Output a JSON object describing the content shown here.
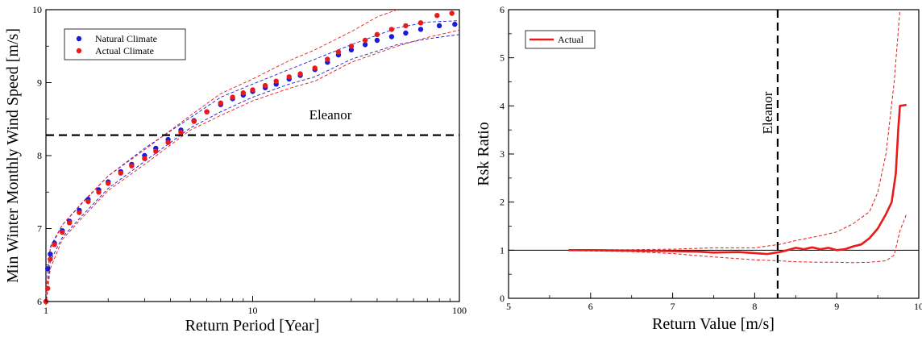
{
  "chart_data": [
    {
      "type": "scatter",
      "xscale": "log",
      "xlabel": "Return Period [Year]",
      "ylabel": "Min Winter Monthly Wind Speed [m/s]",
      "xlim": [
        1,
        100
      ],
      "ylim": [
        6,
        10
      ],
      "xticks": [
        {
          "value": 1,
          "label": "1"
        },
        {
          "value": 10,
          "label": "10"
        },
        {
          "value": 100,
          "label": "100"
        }
      ],
      "yticks": [
        {
          "value": 6,
          "label": "6"
        },
        {
          "value": 7,
          "label": "7"
        },
        {
          "value": 8,
          "label": "8"
        },
        {
          "value": 9,
          "label": "9"
        },
        {
          "value": 10,
          "label": "10"
        }
      ],
      "legend_position": "top-left",
      "threshold": {
        "value": 8.28,
        "label": "Eleanor",
        "orientation": "horizontal",
        "style": "dashed"
      },
      "series": [
        {
          "name": "Natural Climate",
          "color": "#1a1adc",
          "points": [
            [
              1.0,
              6.0
            ],
            [
              1.02,
              6.45
            ],
            [
              1.05,
              6.65
            ],
            [
              1.1,
              6.8
            ],
            [
              1.2,
              6.97
            ],
            [
              1.3,
              7.1
            ],
            [
              1.45,
              7.25
            ],
            [
              1.6,
              7.4
            ],
            [
              1.8,
              7.53
            ],
            [
              2.0,
              7.64
            ],
            [
              2.3,
              7.78
            ],
            [
              2.6,
              7.88
            ],
            [
              3.0,
              8.0
            ],
            [
              3.4,
              8.1
            ],
            [
              3.9,
              8.22
            ],
            [
              4.5,
              8.35
            ],
            [
              5.2,
              8.48
            ],
            [
              6.0,
              8.6
            ],
            [
              7.0,
              8.7
            ],
            [
              8.0,
              8.78
            ],
            [
              9.0,
              8.83
            ],
            [
              10.0,
              8.88
            ],
            [
              11.5,
              8.93
            ],
            [
              13.0,
              8.98
            ],
            [
              15.0,
              9.05
            ],
            [
              17.0,
              9.1
            ],
            [
              20.0,
              9.18
            ],
            [
              23.0,
              9.28
            ],
            [
              26.0,
              9.38
            ],
            [
              30.0,
              9.45
            ],
            [
              35.0,
              9.52
            ],
            [
              40.0,
              9.58
            ],
            [
              47.0,
              9.63
            ],
            [
              55.0,
              9.68
            ],
            [
              65.0,
              9.73
            ],
            [
              80.0,
              9.78
            ],
            [
              95.0,
              9.8
            ]
          ],
          "ci_upper": [
            [
              1.0,
              6.1
            ],
            [
              1.05,
              6.75
            ],
            [
              1.2,
              7.05
            ],
            [
              1.5,
              7.35
            ],
            [
              2.0,
              7.72
            ],
            [
              3.0,
              8.1
            ],
            [
              5.0,
              8.52
            ],
            [
              7.0,
              8.8
            ],
            [
              10.0,
              8.98
            ],
            [
              15.0,
              9.18
            ],
            [
              20.0,
              9.32
            ],
            [
              30.0,
              9.52
            ],
            [
              50.0,
              9.75
            ],
            [
              70.0,
              9.83
            ],
            [
              100.0,
              9.85
            ]
          ],
          "ci_lower": [
            [
              1.0,
              5.95
            ],
            [
              1.05,
              6.55
            ],
            [
              1.2,
              6.88
            ],
            [
              1.5,
              7.18
            ],
            [
              2.0,
              7.55
            ],
            [
              3.0,
              7.92
            ],
            [
              5.0,
              8.38
            ],
            [
              7.0,
              8.6
            ],
            [
              10.0,
              8.8
            ],
            [
              15.0,
              8.98
            ],
            [
              20.0,
              9.08
            ],
            [
              30.0,
              9.32
            ],
            [
              50.0,
              9.52
            ],
            [
              70.0,
              9.6
            ],
            [
              100.0,
              9.66
            ]
          ]
        },
        {
          "name": "Actual Climate",
          "color": "#e81a1a",
          "points": [
            [
              1.0,
              6.0
            ],
            [
              1.02,
              6.18
            ],
            [
              1.05,
              6.58
            ],
            [
              1.1,
              6.78
            ],
            [
              1.2,
              6.95
            ],
            [
              1.3,
              7.08
            ],
            [
              1.45,
              7.22
            ],
            [
              1.6,
              7.37
            ],
            [
              1.8,
              7.5
            ],
            [
              2.0,
              7.62
            ],
            [
              2.3,
              7.76
            ],
            [
              2.6,
              7.86
            ],
            [
              3.0,
              7.96
            ],
            [
              3.4,
              8.06
            ],
            [
              3.9,
              8.18
            ],
            [
              4.5,
              8.32
            ],
            [
              5.2,
              8.47
            ],
            [
              6.0,
              8.6
            ],
            [
              7.0,
              8.72
            ],
            [
              8.0,
              8.8
            ],
            [
              9.0,
              8.86
            ],
            [
              10.0,
              8.9
            ],
            [
              11.5,
              8.96
            ],
            [
              13.0,
              9.02
            ],
            [
              15.0,
              9.08
            ],
            [
              17.0,
              9.12
            ],
            [
              20.0,
              9.2
            ],
            [
              23.0,
              9.32
            ],
            [
              26.0,
              9.42
            ],
            [
              30.0,
              9.5
            ],
            [
              35.0,
              9.58
            ],
            [
              40.0,
              9.66
            ],
            [
              47.0,
              9.73
            ],
            [
              55.0,
              9.78
            ],
            [
              65.0,
              9.82
            ],
            [
              78.0,
              9.92
            ],
            [
              92.0,
              9.95
            ]
          ],
          "ci_upper": [
            [
              1.0,
              6.1
            ],
            [
              1.05,
              6.72
            ],
            [
              1.2,
              7.05
            ],
            [
              1.5,
              7.36
            ],
            [
              2.0,
              7.72
            ],
            [
              3.0,
              8.08
            ],
            [
              5.0,
              8.55
            ],
            [
              7.0,
              8.85
            ],
            [
              10.0,
              9.05
            ],
            [
              15.0,
              9.3
            ],
            [
              20.0,
              9.45
            ],
            [
              30.0,
              9.7
            ],
            [
              40.0,
              9.9
            ],
            [
              50.0,
              10.0
            ]
          ],
          "ci_lower": [
            [
              1.0,
              5.95
            ],
            [
              1.05,
              6.45
            ],
            [
              1.2,
              6.85
            ],
            [
              1.5,
              7.15
            ],
            [
              2.0,
              7.52
            ],
            [
              3.0,
              7.88
            ],
            [
              5.0,
              8.35
            ],
            [
              7.0,
              8.55
            ],
            [
              10.0,
              8.75
            ],
            [
              15.0,
              8.92
            ],
            [
              20.0,
              9.02
            ],
            [
              30.0,
              9.28
            ],
            [
              50.0,
              9.5
            ],
            [
              70.0,
              9.62
            ],
            [
              100.0,
              9.72
            ]
          ]
        }
      ]
    },
    {
      "type": "line",
      "xlabel": "Return Value [m/s]",
      "ylabel": "Rsk Ratio",
      "xlim": [
        5,
        10
      ],
      "ylim": [
        0,
        6
      ],
      "xticks": [
        {
          "value": 5,
          "label": "5"
        },
        {
          "value": 6,
          "label": "6"
        },
        {
          "value": 7,
          "label": "7"
        },
        {
          "value": 8,
          "label": "8"
        },
        {
          "value": 9,
          "label": "9"
        },
        {
          "value": 10,
          "label": "10"
        }
      ],
      "yticks": [
        {
          "value": 0,
          "label": "0"
        },
        {
          "value": 1,
          "label": "1"
        },
        {
          "value": 2,
          "label": "2"
        },
        {
          "value": 3,
          "label": "3"
        },
        {
          "value": 4,
          "label": "4"
        },
        {
          "value": 5,
          "label": "5"
        },
        {
          "value": 6,
          "label": "6"
        }
      ],
      "legend_position": "top-left",
      "reference_line": {
        "value": 1
      },
      "threshold": {
        "value": 8.28,
        "label": "Eleanor",
        "orientation": "vertical",
        "style": "dashed"
      },
      "series": [
        {
          "name": "Actual",
          "color": "#e81a1a",
          "points": [
            [
              5.73,
              1.0
            ],
            [
              6.0,
              1.0
            ],
            [
              6.5,
              0.99
            ],
            [
              7.0,
              0.98
            ],
            [
              7.3,
              0.97
            ],
            [
              7.5,
              0.95
            ],
            [
              7.8,
              0.96
            ],
            [
              8.0,
              0.94
            ],
            [
              8.15,
              0.92
            ],
            [
              8.3,
              0.96
            ],
            [
              8.4,
              1.0
            ],
            [
              8.5,
              1.05
            ],
            [
              8.6,
              1.02
            ],
            [
              8.7,
              1.06
            ],
            [
              8.8,
              1.02
            ],
            [
              8.9,
              1.05
            ],
            [
              9.0,
              1.0
            ],
            [
              9.1,
              1.02
            ],
            [
              9.2,
              1.08
            ],
            [
              9.3,
              1.12
            ],
            [
              9.4,
              1.25
            ],
            [
              9.5,
              1.45
            ],
            [
              9.6,
              1.75
            ],
            [
              9.67,
              2.0
            ],
            [
              9.72,
              2.6
            ],
            [
              9.75,
              3.5
            ],
            [
              9.77,
              4.0
            ],
            [
              9.85,
              4.02
            ]
          ],
          "ci_upper": [
            [
              5.73,
              1.01
            ],
            [
              6.5,
              1.01
            ],
            [
              7.0,
              1.02
            ],
            [
              7.5,
              1.05
            ],
            [
              8.0,
              1.05
            ],
            [
              8.3,
              1.12
            ],
            [
              8.5,
              1.2
            ],
            [
              8.8,
              1.3
            ],
            [
              9.0,
              1.38
            ],
            [
              9.2,
              1.55
            ],
            [
              9.4,
              1.8
            ],
            [
              9.5,
              2.2
            ],
            [
              9.6,
              3.0
            ],
            [
              9.7,
              4.5
            ],
            [
              9.77,
              6.0
            ]
          ],
          "ci_lower": [
            [
              5.73,
              0.99
            ],
            [
              6.5,
              0.97
            ],
            [
              7.0,
              0.93
            ],
            [
              7.5,
              0.86
            ],
            [
              8.0,
              0.8
            ],
            [
              8.3,
              0.78
            ],
            [
              8.5,
              0.76
            ],
            [
              8.8,
              0.75
            ],
            [
              9.0,
              0.75
            ],
            [
              9.2,
              0.74
            ],
            [
              9.4,
              0.75
            ],
            [
              9.6,
              0.78
            ],
            [
              9.7,
              0.9
            ],
            [
              9.77,
              1.4
            ],
            [
              9.85,
              1.75
            ]
          ]
        }
      ]
    }
  ]
}
